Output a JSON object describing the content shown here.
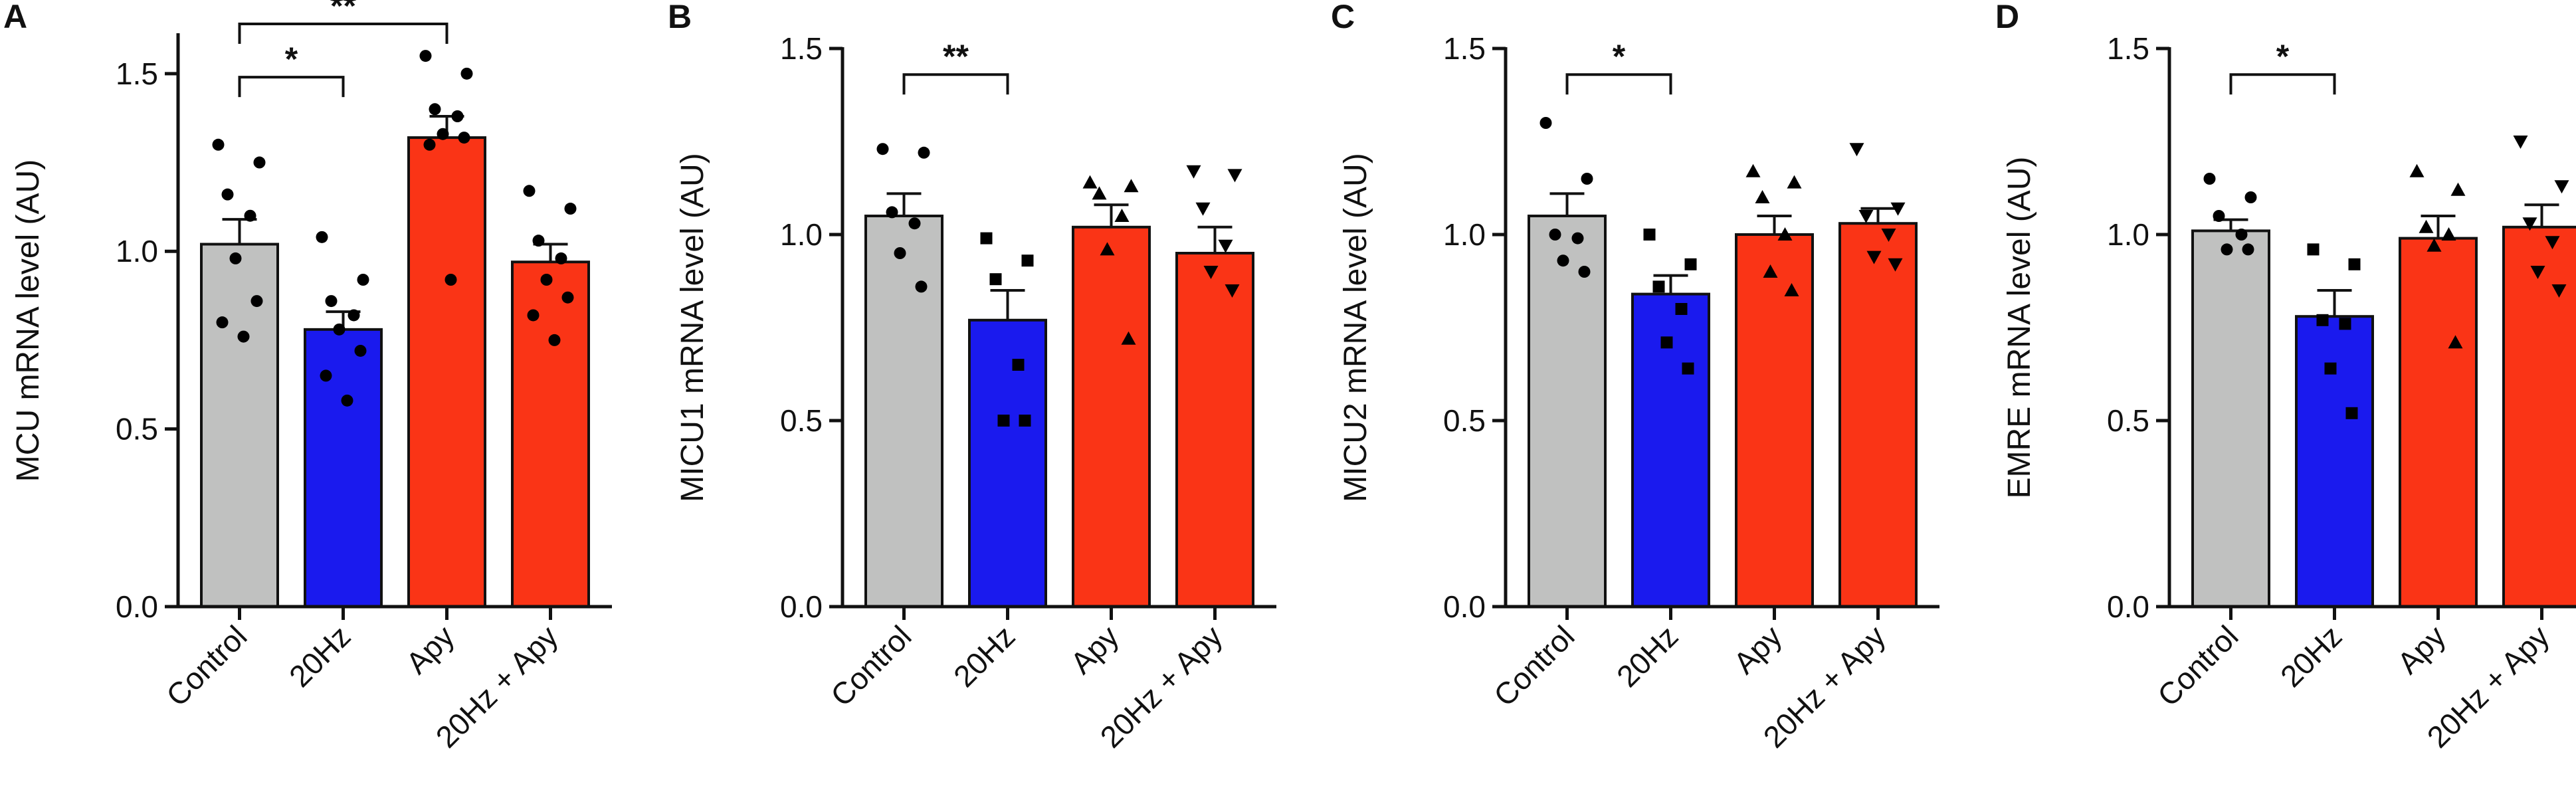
{
  "colors": {
    "control": "#c0c1c0",
    "20hz": "#1a1aee",
    "apy": "#fa3416",
    "20hz_apy": "#fa3416",
    "axis": "#111111"
  },
  "chart_data": [
    {
      "panel": "A",
      "type": "bar",
      "ylabel": "MCU mRNA level (AU)",
      "ylim": [
        0,
        1.6
      ],
      "yticks": [
        0,
        0.5,
        1,
        1.5
      ],
      "ytick_labels": [
        "0.0",
        "0.5",
        "1.0",
        "1.5"
      ],
      "categories": [
        "Control",
        "20Hz",
        "Apy",
        "20Hz + Apy"
      ],
      "values": [
        1.02,
        0.78,
        1.32,
        0.97
      ],
      "errors": [
        0.07,
        0.05,
        0.06,
        0.05
      ],
      "points": [
        [
          1.3,
          1.25,
          1.16,
          1.1,
          0.98,
          0.86,
          0.8,
          0.76
        ],
        [
          1.04,
          0.92,
          0.86,
          0.82,
          0.78,
          0.72,
          0.65,
          0.58
        ],
        [
          1.55,
          1.5,
          1.4,
          1.38,
          1.33,
          1.32,
          1.3,
          0.92
        ],
        [
          1.17,
          1.12,
          1.03,
          0.98,
          0.92,
          0.87,
          0.82,
          0.75
        ]
      ],
      "markers": [
        "circle",
        "circle",
        "circle",
        "circle"
      ],
      "significance": [
        {
          "from": 0,
          "to": 1,
          "label": "*",
          "level": 1.49
        },
        {
          "from": 0,
          "to": 2,
          "label": "**",
          "level": 1.64
        }
      ]
    },
    {
      "panel": "B",
      "type": "bar",
      "ylabel": "MICU1 mRNA level (AU)",
      "ylim": [
        0,
        1.5
      ],
      "yticks": [
        0,
        0.5,
        1,
        1.5
      ],
      "ytick_labels": [
        "0.0",
        "0.5",
        "1.0",
        "1.5"
      ],
      "categories": [
        "Control",
        "20Hz",
        "Apy",
        "20Hz + Apy"
      ],
      "values": [
        1.05,
        0.77,
        1.02,
        0.95
      ],
      "errors": [
        0.06,
        0.08,
        0.06,
        0.07
      ],
      "points": [
        [
          1.23,
          1.22,
          1.06,
          1.03,
          0.95,
          0.86
        ],
        [
          0.99,
          0.93,
          0.88,
          0.65,
          0.5,
          0.5
        ],
        [
          1.14,
          1.13,
          1.11,
          1.05,
          0.96,
          0.72
        ],
        [
          1.17,
          1.16,
          1.07,
          0.97,
          0.9,
          0.85
        ]
      ],
      "markers": [
        "circle",
        "square",
        "triangle-up",
        "triangle-down"
      ],
      "significance": [
        {
          "from": 0,
          "to": 1,
          "label": "**",
          "level": 1.43
        }
      ]
    },
    {
      "panel": "C",
      "type": "bar",
      "ylabel": "MICU2 mRNA level (AU)",
      "ylim": [
        0,
        1.5
      ],
      "yticks": [
        0,
        0.5,
        1,
        1.5
      ],
      "ytick_labels": [
        "0.0",
        "0.5",
        "1.0",
        "1.5"
      ],
      "categories": [
        "Control",
        "20Hz",
        "Apy",
        "20Hz + Apy"
      ],
      "values": [
        1.05,
        0.84,
        1.0,
        1.03
      ],
      "errors": [
        0.06,
        0.05,
        0.05,
        0.04
      ],
      "points": [
        [
          1.3,
          1.15,
          1.0,
          0.99,
          0.93,
          0.9
        ],
        [
          1.0,
          0.92,
          0.86,
          0.8,
          0.71,
          0.64
        ],
        [
          1.17,
          1.14,
          1.1,
          1.0,
          0.9,
          0.85
        ],
        [
          1.23,
          1.07,
          1.05,
          1.0,
          0.94,
          0.92
        ]
      ],
      "markers": [
        "circle",
        "square",
        "triangle-up",
        "triangle-down"
      ],
      "significance": [
        {
          "from": 0,
          "to": 1,
          "label": "*",
          "level": 1.43
        }
      ]
    },
    {
      "panel": "D",
      "type": "bar",
      "ylabel": "EMRE mRNA level (AU)",
      "ylim": [
        0,
        1.5
      ],
      "yticks": [
        0,
        0.5,
        1,
        1.5
      ],
      "ytick_labels": [
        "0.0",
        "0.5",
        "1.0",
        "1.5"
      ],
      "categories": [
        "Control",
        "20Hz",
        "Apy",
        "20Hz + Apy"
      ],
      "values": [
        1.01,
        0.78,
        0.99,
        1.02
      ],
      "errors": [
        0.03,
        0.07,
        0.06,
        0.06
      ],
      "points": [
        [
          1.15,
          1.1,
          1.05,
          1.0,
          0.96,
          0.96
        ],
        [
          0.96,
          0.92,
          0.77,
          0.76,
          0.64,
          0.52
        ],
        [
          1.17,
          1.12,
          1.02,
          1.0,
          0.97,
          0.71
        ],
        [
          1.25,
          1.13,
          1.03,
          0.98,
          0.9,
          0.85
        ]
      ],
      "markers": [
        "circle",
        "square",
        "triangle-up",
        "triangle-down"
      ],
      "significance": [
        {
          "from": 0,
          "to": 1,
          "label": "*",
          "level": 1.43
        }
      ]
    }
  ]
}
